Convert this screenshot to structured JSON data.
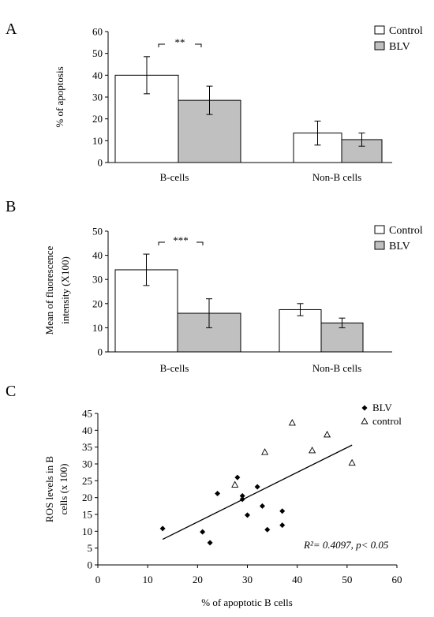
{
  "chart_data": [
    {
      "panel_label": "A",
      "type": "bar",
      "categories": [
        "B-cells",
        "Non-B cells"
      ],
      "series": [
        {
          "name": "Control",
          "values": [
            40,
            13.5
          ],
          "errors": [
            8.5,
            5.5
          ],
          "color": "#ffffff"
        },
        {
          "name": "BLV",
          "values": [
            28.5,
            10.5
          ],
          "errors": [
            6.5,
            3.0
          ],
          "color": "#c0c0c0"
        }
      ],
      "ylabel": "% of apoptosis",
      "ylim": [
        0,
        60
      ],
      "yticks": [
        "0",
        "10",
        "20",
        "30",
        "40",
        "50",
        "60"
      ],
      "significance": "**",
      "legend": "top-right"
    },
    {
      "panel_label": "B",
      "type": "bar",
      "categories": [
        "B-cells",
        "Non-B cells"
      ],
      "series": [
        {
          "name": "Control",
          "values": [
            34,
            17.5
          ],
          "errors": [
            6.5,
            2.5
          ],
          "color": "#ffffff"
        },
        {
          "name": "BLV",
          "values": [
            16,
            12
          ],
          "errors": [
            6,
            2
          ],
          "color": "#c0c0c0"
        }
      ],
      "ylabel_lines": [
        "Mean of fluorescence",
        "intensity  (X100)"
      ],
      "ylim": [
        0,
        50
      ],
      "yticks": [
        "0",
        "10",
        "20",
        "30",
        "40",
        "50"
      ],
      "significance": "***",
      "legend": "top-right"
    },
    {
      "panel_label": "C",
      "type": "scatter",
      "series": [
        {
          "name": "BLV",
          "marker": "diamond",
          "points": [
            [
              13,
              10.8
            ],
            [
              21,
              9.8
            ],
            [
              22.5,
              6.6
            ],
            [
              24,
              21.2
            ],
            [
              28,
              26
            ],
            [
              29,
              20.5
            ],
            [
              29,
              19.5
            ],
            [
              30,
              14.8
            ],
            [
              32,
              23.2
            ],
            [
              33,
              17.5
            ],
            [
              34,
              10.5
            ],
            [
              37,
              16
            ],
            [
              37,
              11.8
            ]
          ]
        },
        {
          "name": "control",
          "marker": "triangle",
          "points": [
            [
              27.5,
              23.8
            ],
            [
              33.5,
              33.5
            ],
            [
              39,
              42.2
            ],
            [
              43,
              34
            ],
            [
              46,
              38.7
            ],
            [
              51,
              30.3
            ]
          ]
        }
      ],
      "trendline": {
        "x": [
          13,
          51
        ],
        "y": [
          7.6,
          35.6
        ]
      },
      "annotation": "R²= 0.4097,  p< 0.05",
      "xlabel": "% of apoptotic B cells",
      "ylabel_lines": [
        "ROS levels in B",
        "cells (x 100)"
      ],
      "xlim": [
        0,
        60
      ],
      "ylim": [
        0,
        45
      ],
      "xticks": [
        "0",
        "10",
        "20",
        "30",
        "40",
        "50",
        "60"
      ],
      "yticks": [
        "0",
        "5",
        "10",
        "15",
        "20",
        "25",
        "30",
        "35",
        "40",
        "45"
      ],
      "legend": "top-right"
    }
  ]
}
